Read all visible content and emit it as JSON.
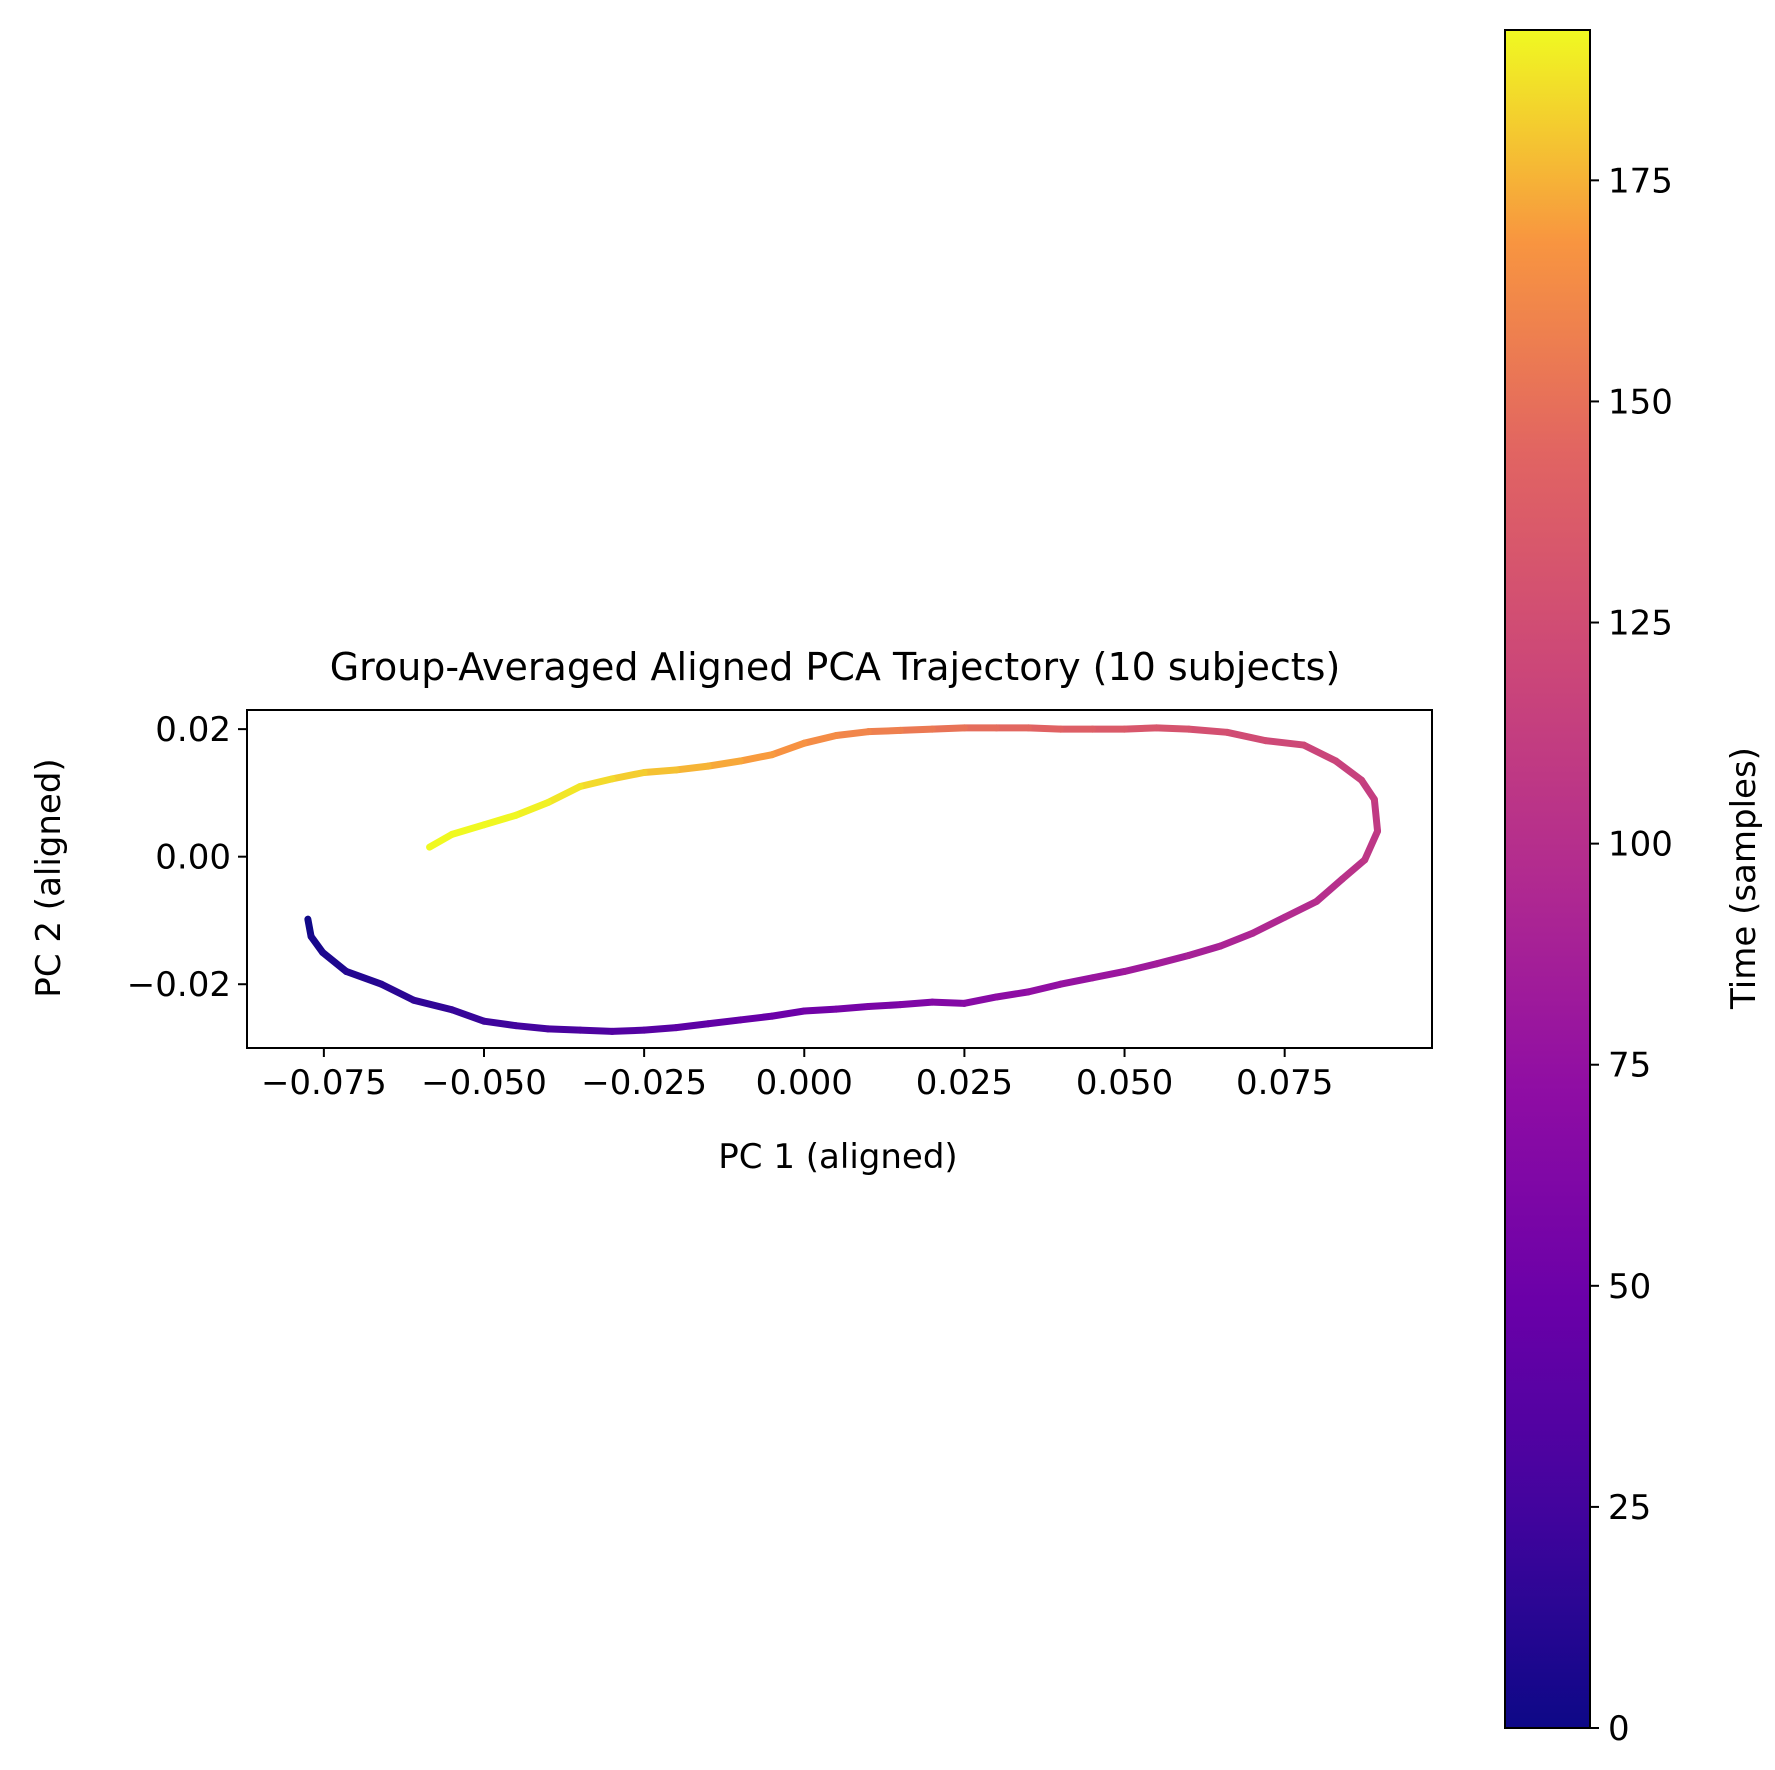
{
  "chart_data": {
    "type": "line",
    "title": "Group-Averaged Aligned PCA Trajectory (10 subjects)",
    "xlabel": "PC 1 (aligned)",
    "ylabel": "PC 2 (aligned)",
    "xlim": [
      -0.087,
      0.098
    ],
    "ylim": [
      -0.03,
      0.023
    ],
    "xticks": [
      -0.075,
      -0.05,
      -0.025,
      0.0,
      0.025,
      0.05,
      0.075
    ],
    "xtick_labels": [
      "−0.075",
      "−0.050",
      "−0.025",
      "0.000",
      "0.025",
      "0.050",
      "0.075"
    ],
    "yticks": [
      -0.02,
      0.0,
      0.02
    ],
    "ytick_labels": [
      "−0.02",
      "0.00",
      "0.02"
    ],
    "grid": false,
    "colormap": "plasma",
    "colorbar": {
      "label": "Time (samples)",
      "range": [
        0,
        192
      ],
      "ticks": [
        0,
        25,
        50,
        75,
        100,
        125,
        150,
        175
      ],
      "tick_labels": [
        "0",
        "25",
        "50",
        "75",
        "100",
        "125",
        "150",
        "175"
      ]
    },
    "series": [
      {
        "x": [
          -0.0775,
          -0.077,
          -0.0752,
          -0.0715,
          -0.066,
          -0.061,
          -0.055,
          -0.05,
          -0.045,
          -0.04,
          -0.035,
          -0.03,
          -0.025,
          -0.02,
          -0.015,
          -0.01,
          -0.005,
          0.0,
          0.005,
          0.01,
          0.015,
          0.02,
          0.025,
          0.03,
          0.035,
          0.04,
          0.045,
          0.05,
          0.055,
          0.06,
          0.065,
          0.07,
          0.075,
          0.08,
          0.084,
          0.0875,
          0.0895,
          0.089,
          0.087,
          0.083,
          0.078,
          0.072,
          0.066,
          0.06,
          0.055,
          0.05,
          0.045,
          0.04,
          0.035,
          0.03,
          0.025,
          0.02,
          0.015,
          0.01,
          0.005,
          0.0,
          -0.005,
          -0.01,
          -0.015,
          -0.02,
          -0.025,
          -0.03,
          -0.035,
          -0.04,
          -0.045,
          -0.05,
          -0.055,
          -0.0585
        ],
        "y": [
          -0.0098,
          -0.0125,
          -0.015,
          -0.018,
          -0.02,
          -0.0225,
          -0.024,
          -0.0258,
          -0.0265,
          -0.027,
          -0.0272,
          -0.0274,
          -0.0272,
          -0.0268,
          -0.0262,
          -0.0256,
          -0.025,
          -0.0242,
          -0.0239,
          -0.0235,
          -0.0232,
          -0.0228,
          -0.023,
          -0.022,
          -0.0212,
          -0.02,
          -0.019,
          -0.018,
          -0.0168,
          -0.0155,
          -0.014,
          -0.012,
          -0.0095,
          -0.007,
          -0.0035,
          -0.0005,
          0.004,
          0.009,
          0.012,
          0.015,
          0.0175,
          0.0182,
          0.0195,
          0.02,
          0.0202,
          0.02,
          0.02,
          0.02,
          0.0202,
          0.0202,
          0.0202,
          0.02,
          0.0198,
          0.0196,
          0.019,
          0.0178,
          0.016,
          0.015,
          0.0142,
          0.0136,
          0.0132,
          0.0122,
          0.011,
          0.0085,
          0.0065,
          0.005,
          0.0035,
          0.0015
        ],
        "t": [
          0,
          3,
          6,
          9,
          12,
          15,
          18,
          21,
          24,
          27,
          30,
          33,
          36,
          39,
          42,
          45,
          48,
          51,
          54,
          57,
          60,
          63,
          66,
          69,
          72,
          75,
          78,
          81,
          84,
          87,
          90,
          93,
          96,
          99,
          102,
          105,
          108,
          111,
          114,
          117,
          120,
          123,
          126,
          129,
          132,
          135,
          138,
          141,
          144,
          147,
          150,
          153,
          156,
          159,
          162,
          165,
          168,
          171,
          174,
          177,
          180,
          183,
          186,
          189,
          191,
          192,
          192,
          192
        ]
      }
    ]
  }
}
